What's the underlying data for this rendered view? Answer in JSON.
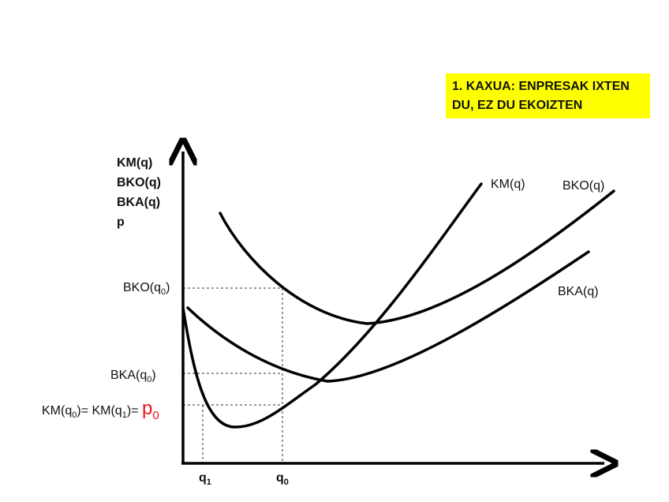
{
  "title_box": {
    "line1": "1. KAXUA: ENPRESAK IXTEN",
    "line2": "DU, EZ DU EKOIZTEN",
    "background": "#ffff00"
  },
  "y_axis_labels": [
    "KM(q)",
    "BKO(q)",
    "BKA(q)",
    "p"
  ],
  "curve_labels": {
    "km": "KM(q)",
    "bko": "BKO(q)",
    "bka": "BKA(q)"
  },
  "level_labels": {
    "bko_q0": {
      "text": "BKO(q",
      "sub": "0",
      "close": ")"
    },
    "bka_q0": {
      "text": "BKA(q",
      "sub": "0",
      "close": ")"
    },
    "km": {
      "a": "KM(q",
      "a_sub": "0",
      "b": ")= KM(q",
      "b_sub": "1",
      "c": ")=",
      "p": "p",
      "p_sub": "0"
    }
  },
  "x_ticks": [
    {
      "text": "q",
      "sub": "1"
    },
    {
      "text": "q",
      "sub": "0"
    }
  ],
  "colors": {
    "price": "#e8141b",
    "highlight": "#ffff00"
  }
}
